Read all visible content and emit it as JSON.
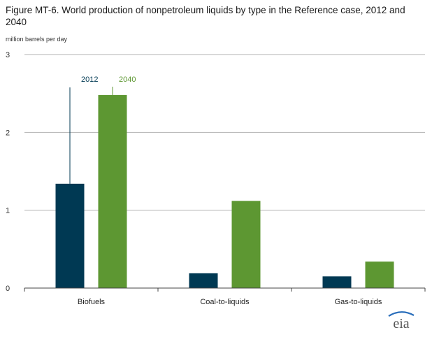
{
  "chart_data": {
    "type": "bar",
    "title": "Figure MT-6. World production of nonpetroleum liquids by type in the Reference case, 2012 and 2040",
    "ylabel": "million barrels  per day",
    "xlabel": "",
    "categories": [
      "Biofuels",
      "Coal-to-liquids",
      "Gas-to-liquids"
    ],
    "series": [
      {
        "name": "2012",
        "values": [
          1.34,
          0.19,
          0.15
        ],
        "color": "#003953"
      },
      {
        "name": "2040",
        "values": [
          2.48,
          1.12,
          0.34
        ],
        "color": "#5d9732"
      }
    ],
    "ylim": [
      0,
      3
    ],
    "yticks": [
      "0",
      "1",
      "2",
      "3"
    ],
    "grid": true,
    "legend": "direct labels above Biofuels bars"
  },
  "logo": {
    "text": "eia"
  },
  "colors": {
    "grid": "#b3b3b3",
    "axis": "#444444"
  }
}
